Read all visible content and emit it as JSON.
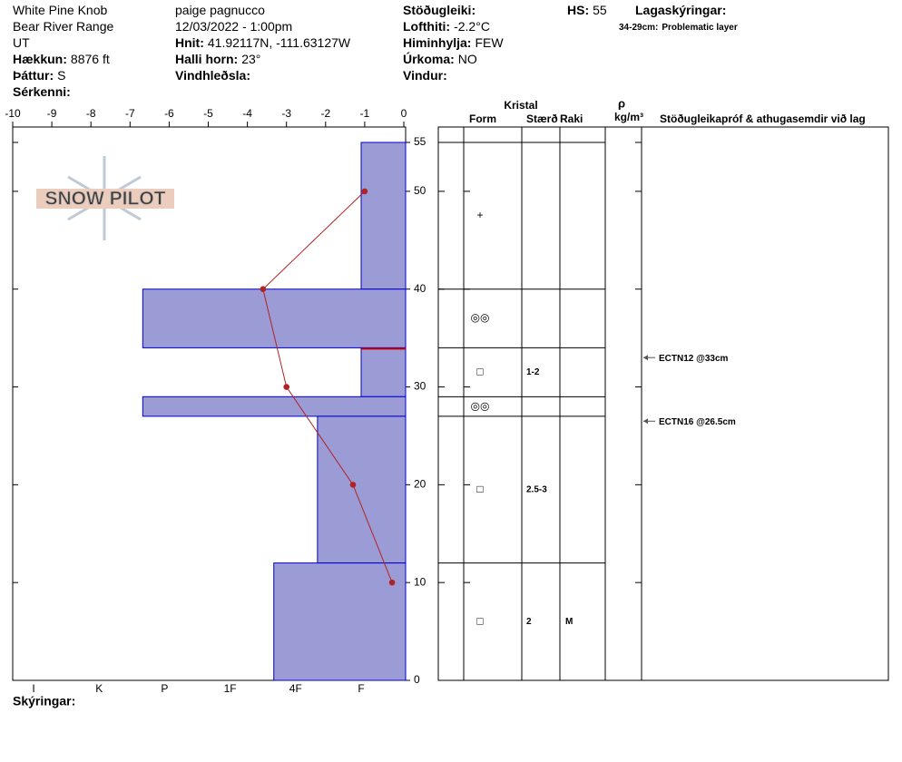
{
  "header": {
    "fields": [
      {
        "value": "White Pine Knob"
      },
      {
        "value": "Bear River Range"
      },
      {
        "value": "UT"
      },
      {
        "label": "Hækkun:",
        "value": "8876 ft"
      },
      {
        "label": "Þáttur:",
        "value": "S"
      },
      {
        "label": "Sérkenni:"
      },
      {
        "value": "paige pagnucco"
      },
      {
        "value": "12/03/2022 - 1:00pm"
      },
      {
        "label": "Hnit:",
        "value": "41.92117N, -111.63127W"
      },
      {
        "label": "Halli horn:",
        "value": "23°"
      },
      {
        "label": "Vindhleðsla:"
      },
      {
        "label": "Stöðugleiki:"
      },
      {
        "label": "Lofthiti:",
        "value": "-2.2°C"
      },
      {
        "label": "Himinhylja:",
        "value": "FEW"
      },
      {
        "label": "Úrkoma:",
        "value": "NO"
      },
      {
        "label": "Vindur:"
      },
      {
        "label": "HS:",
        "value": 55
      },
      {
        "label": "Lagaskýringar:"
      }
    ],
    "layer_notes": [
      {
        "label": "34-29cm:",
        "value": "Problematic layer"
      }
    ]
  },
  "logo": "SNOW PILOT",
  "temperature": {
    "xlim": [
      -10,
      0
    ],
    "xticks": [
      -10,
      -9,
      -8,
      -7,
      -6,
      -5,
      -4,
      -3,
      -2,
      -1,
      0
    ],
    "heights": [
      50,
      40,
      30,
      20,
      10
    ],
    "values": [
      -1,
      -3.6,
      -3,
      -1.3,
      -0.3
    ],
    "color": "#b22222"
  },
  "height_axis": {
    "ylim": [
      0,
      55
    ],
    "yticks": [
      0,
      10,
      20,
      30,
      40,
      50,
      55
    ]
  },
  "hardness": {
    "categories": [
      "I",
      "K",
      "P",
      "1F",
      "4F",
      "F"
    ],
    "color": "#9b9bd6"
  },
  "layers": [
    {
      "top": 55,
      "bottom": 40,
      "hardness": "F",
      "form": "+"
    },
    {
      "top": 40,
      "bottom": 34,
      "hardness": "P+",
      "form": "◎◎"
    },
    {
      "top": 34,
      "bottom": 29,
      "hardness": "F",
      "form": "□",
      "size": "1-2",
      "problematic": true
    },
    {
      "top": 29,
      "bottom": 27,
      "hardness": "P+",
      "form": "◎◎"
    },
    {
      "top": 27,
      "bottom": 12,
      "hardness": "4F-",
      "form": "□",
      "size": "2.5-3"
    },
    {
      "top": 12,
      "bottom": 0,
      "hardness": "4F+",
      "form": "□",
      "size": "2",
      "moisture": "M"
    }
  ],
  "tests": [
    {
      "height": 33,
      "label": "ECTN12 @33cm"
    },
    {
      "height": 26.5,
      "label": "ECTN16 @26.5cm"
    }
  ],
  "table_headers": {
    "crystal": "Kristal",
    "form": "Form",
    "size": "Stærð",
    "moisture": "Raki",
    "density_symbol": "ρ",
    "density_unit": "kg/m³",
    "stability": "Stöðugleikapróf & athugasemdir við lag"
  },
  "footer": {
    "label": "Skýringar:"
  }
}
